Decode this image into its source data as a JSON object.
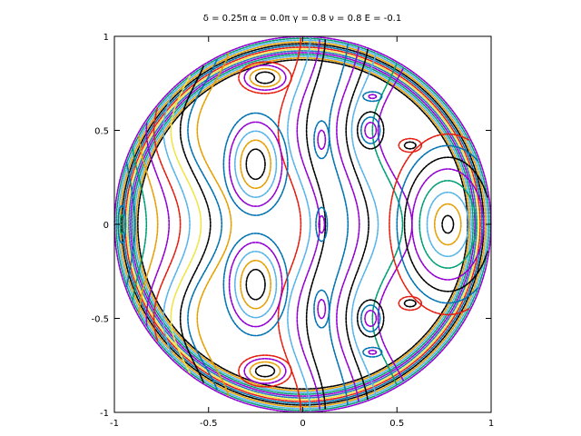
{
  "chart_data": {
    "type": "scatter",
    "title": "δ  =  0.25π    α  = 0.0π    γ  =  0.8    ν  =  0.8      E  =  -0.1",
    "xlabel": "",
    "ylabel": "",
    "xlim": [
      -1,
      1
    ],
    "ylim": [
      -1,
      1
    ],
    "x_ticks": [
      "-1",
      "-0.5",
      "0",
      "0.5",
      "1"
    ],
    "y_ticks": [
      "1",
      "0.5",
      "0",
      "-0.5",
      "-1"
    ],
    "grid": false,
    "boundary": {
      "shape": "circle",
      "radius": 1
    },
    "series_colors": [
      "#9400d3",
      "#009e73",
      "#56b4e9",
      "#e69f00",
      "#000000",
      "#0072b2",
      "#e51e10",
      "#f0e442",
      "#1f78b4"
    ],
    "islands": [
      {
        "name": "right-center",
        "center": [
          0.77,
          0.0
        ],
        "radii": [
          0.03,
          0.07,
          0.11,
          0.15,
          0.19,
          0.23,
          0.27,
          0.31
        ],
        "aspect": 1.55,
        "colors": [
          "#000000",
          "#e69f00",
          "#56b4e9",
          "#009e73",
          "#9400d3",
          "#000000",
          "#0072b2",
          "#e51e10"
        ]
      },
      {
        "name": "left-upper",
        "center": [
          -0.25,
          0.32
        ],
        "radii": [
          0.05,
          0.08,
          0.11,
          0.14,
          0.17
        ],
        "aspect": 1.6,
        "colors": [
          "#000000",
          "#e69f00",
          "#56b4e9",
          "#9400d3",
          "#0072b2"
        ]
      },
      {
        "name": "left-lower",
        "center": [
          -0.25,
          -0.32
        ],
        "radii": [
          0.05,
          0.08,
          0.11,
          0.14,
          0.17
        ],
        "aspect": 1.6,
        "colors": [
          "#000000",
          "#e69f00",
          "#56b4e9",
          "#9400d3",
          "#0072b2"
        ]
      },
      {
        "name": "left-top",
        "center": [
          -0.2,
          0.78
        ],
        "radii": [
          0.05,
          0.08,
          0.11,
          0.14
        ],
        "aspect": 0.6,
        "colors": [
          "#000000",
          "#e69f00",
          "#9400d3",
          "#e51e10"
        ]
      },
      {
        "name": "left-bottom",
        "center": [
          -0.2,
          -0.78
        ],
        "radii": [
          0.05,
          0.08,
          0.11,
          0.14
        ],
        "aspect": 0.6,
        "colors": [
          "#000000",
          "#e69f00",
          "#9400d3",
          "#e51e10"
        ]
      },
      {
        "name": "mid-upper",
        "center": [
          0.36,
          0.5
        ],
        "radii": [
          0.03,
          0.05,
          0.07
        ],
        "aspect": 1.4,
        "colors": [
          "#9400d3",
          "#0072b2",
          "#000000"
        ]
      },
      {
        "name": "mid-lower",
        "center": [
          0.36,
          -0.5
        ],
        "radii": [
          0.03,
          0.05,
          0.07
        ],
        "aspect": 1.4,
        "colors": [
          "#9400d3",
          "#0072b2",
          "#000000"
        ]
      },
      {
        "name": "top-right-small",
        "center": [
          0.37,
          0.68
        ],
        "radii": [
          0.02,
          0.05
        ],
        "aspect": 0.5,
        "colors": [
          "#9400d3",
          "#0072b2"
        ]
      },
      {
        "name": "bottom-right-small",
        "center": [
          0.37,
          -0.68
        ],
        "radii": [
          0.02,
          0.05
        ],
        "aspect": 0.5,
        "colors": [
          "#9400d3",
          "#0072b2"
        ]
      },
      {
        "name": "center-upper",
        "center": [
          0.1,
          0.45
        ],
        "radii": [
          0.02,
          0.04
        ],
        "aspect": 2.5,
        "colors": [
          "#9400d3",
          "#0072b2"
        ]
      },
      {
        "name": "center-lower",
        "center": [
          0.1,
          -0.45
        ],
        "radii": [
          0.02,
          0.04
        ],
        "aspect": 2.5,
        "colors": [
          "#9400d3",
          "#0072b2"
        ]
      },
      {
        "name": "center-mid",
        "center": [
          0.1,
          0.0
        ],
        "radii": [
          0.015,
          0.03
        ],
        "aspect": 3,
        "colors": [
          "#9400d3",
          "#0072b2"
        ]
      },
      {
        "name": "right-upper-tri",
        "center": [
          0.57,
          0.42
        ],
        "radii": [
          0.03,
          0.06
        ],
        "aspect": 0.6,
        "colors": [
          "#000000",
          "#e51e10"
        ]
      },
      {
        "name": "right-lower-tri",
        "center": [
          0.57,
          -0.42
        ],
        "radii": [
          0.03,
          0.06
        ],
        "aspect": 0.6,
        "colors": [
          "#000000",
          "#e51e10"
        ]
      },
      {
        "name": "left-edge",
        "center": [
          -0.96,
          0.0
        ],
        "radii": [
          0.01,
          0.02
        ],
        "aspect": 5,
        "colors": [
          "#009e73",
          "#0072b2"
        ]
      }
    ],
    "bands": [
      {
        "base_x": -0.92,
        "amp": 0.03,
        "color": "#0072b2"
      },
      {
        "base_x": -0.87,
        "amp": 0.04,
        "color": "#009e73"
      },
      {
        "base_x": -0.82,
        "amp": 0.05,
        "color": "#e69f00"
      },
      {
        "base_x": -0.77,
        "amp": 0.06,
        "color": "#9400d3"
      },
      {
        "base_x": -0.72,
        "amp": 0.07,
        "color": "#e51e10"
      },
      {
        "base_x": -0.67,
        "amp": 0.07,
        "color": "#56b4e9"
      },
      {
        "base_x": -0.62,
        "amp": 0.08,
        "color": "#f0e442"
      },
      {
        "base_x": -0.57,
        "amp": 0.08,
        "color": "#000000"
      },
      {
        "base_x": -0.52,
        "amp": 0.09,
        "color": "#0072b2"
      },
      {
        "base_x": -0.47,
        "amp": 0.09,
        "color": "#e69f00"
      },
      {
        "base_x": -0.07,
        "amp": 0.06,
        "color": "#e51e10"
      },
      {
        "base_x": -0.02,
        "amp": 0.06,
        "color": "#56b4e9"
      },
      {
        "base_x": 0.03,
        "amp": 0.06,
        "color": "#9400d3"
      },
      {
        "base_x": 0.07,
        "amp": 0.05,
        "color": "#000000"
      },
      {
        "base_x": 0.19,
        "amp": 0.05,
        "color": "#0072b2"
      },
      {
        "base_x": 0.24,
        "amp": 0.06,
        "color": "#9400d3"
      },
      {
        "base_x": 0.29,
        "amp": 0.06,
        "color": "#000000"
      },
      {
        "base_x": 0.33,
        "amp": 0.07,
        "color": "#56b4e9"
      },
      {
        "base_x": 0.45,
        "amp": 0.08,
        "color": "#009e73"
      },
      {
        "base_x": 0.49,
        "amp": 0.09,
        "color": "#9400d3"
      }
    ]
  }
}
